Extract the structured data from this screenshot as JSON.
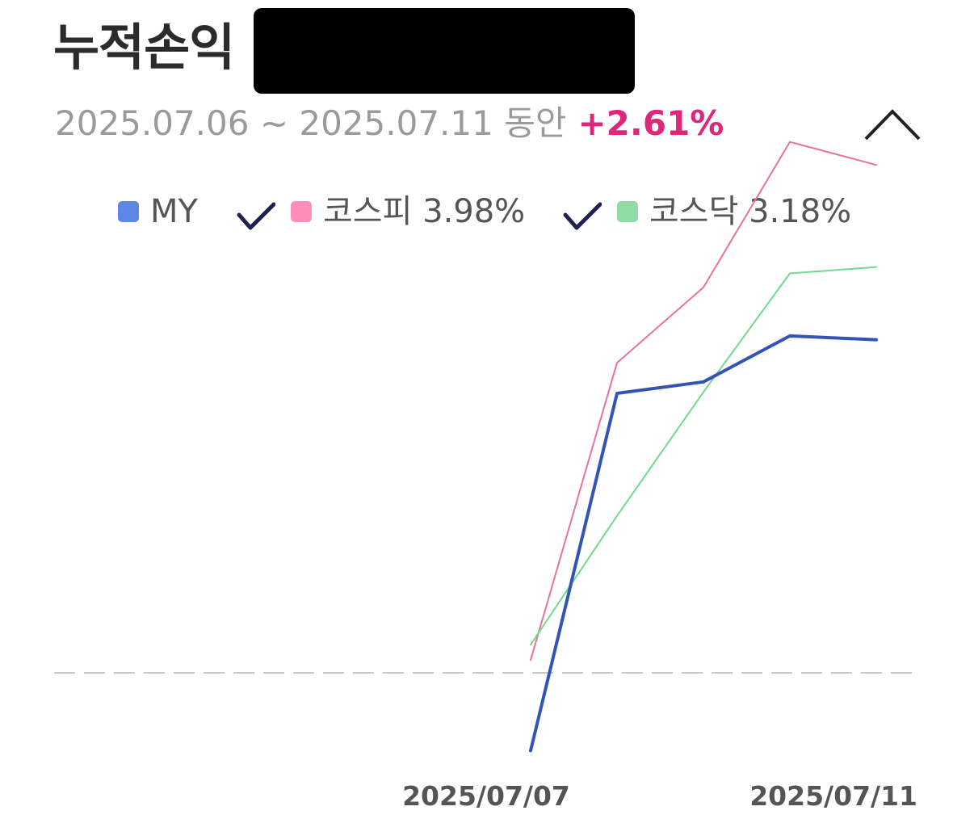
{
  "header": {
    "title": "누적손익",
    "period": "2025.07.06 ~ 2025.07.11 동안",
    "return_pct": "+2.61%",
    "collapse_icon": "chevron-up-icon"
  },
  "legend": {
    "my_label": "MY",
    "kospi_label": "코스피 3.98%",
    "kosdaq_label": "코스닥 3.18%",
    "check_icon": "check-icon"
  },
  "colors": {
    "my": "#3553b5",
    "my_swatch": "#5e86e6",
    "kospi": "#e8729b",
    "kospi_swatch": "#ff8fba",
    "kosdaq": "#6fda8c",
    "kosdaq_swatch": "#8fdca6",
    "baseline": "#c8c8c8",
    "accent": "#e0267a"
  },
  "chart_data": {
    "type": "line",
    "x_tick_labels": [
      "2025/07/07",
      "2025/07/11"
    ],
    "x": [
      "2025/07/07",
      "2025/07/08",
      "2025/07/09",
      "2025/07/10",
      "2025/07/11"
    ],
    "baseline_value": 0,
    "ylim": [
      -0.63,
      3.98
    ],
    "series": [
      {
        "name": "MY",
        "values": [
          -0.61,
          2.19,
          2.28,
          2.64,
          2.61
        ]
      },
      {
        "name": "코스피",
        "values": [
          0.1,
          2.43,
          3.02,
          4.16,
          3.98
        ]
      },
      {
        "name": "코스닥",
        "values": [
          0.22,
          1.23,
          2.2,
          3.13,
          3.18
        ]
      }
    ],
    "grid": false,
    "legend_position": "top"
  }
}
